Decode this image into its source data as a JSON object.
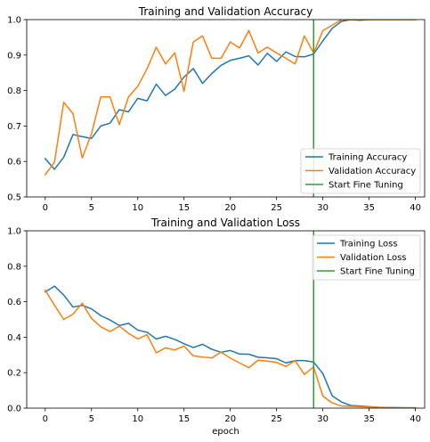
{
  "colors": {
    "training": "#1f77b4",
    "validation": "#ff7f0e",
    "fine_tuning": "#2ca02c"
  },
  "chart_data": [
    {
      "type": "line",
      "title": "Training and Validation Accuracy",
      "xlabel": "",
      "ylabel": "",
      "xlim": [
        -2,
        41
      ],
      "ylim": [
        0.5,
        1.0
      ],
      "xticks": [
        0,
        5,
        10,
        15,
        20,
        25,
        30,
        35,
        40
      ],
      "yticks": [
        0.5,
        0.6,
        0.7,
        0.8,
        0.9,
        1.0
      ],
      "ytick_labels": [
        "0.5",
        "0.6",
        "0.7",
        "0.8",
        "0.9",
        "1.0"
      ],
      "legend_position": "lower-right",
      "grid": false,
      "series": [
        {
          "name": "Training Accuracy",
          "color_key": "training",
          "x": [
            0,
            1,
            2,
            3,
            4,
            5,
            6,
            7,
            8,
            9,
            10,
            11,
            12,
            13,
            14,
            15,
            16,
            17,
            18,
            19,
            20,
            21,
            22,
            23,
            24,
            25,
            26,
            27,
            28,
            29,
            30,
            31,
            32,
            33,
            34,
            35,
            36,
            37,
            38,
            39,
            40
          ],
          "y": [
            0.608,
            0.578,
            0.612,
            0.676,
            0.67,
            0.665,
            0.7,
            0.708,
            0.746,
            0.74,
            0.778,
            0.771,
            0.818,
            0.786,
            0.804,
            0.838,
            0.862,
            0.82,
            0.848,
            0.871,
            0.885,
            0.891,
            0.898,
            0.872,
            0.905,
            0.882,
            0.909,
            0.896,
            0.895,
            0.903,
            0.94,
            0.975,
            0.995,
            1.0,
            0.998,
            1.0,
            1.0,
            1.0,
            1.0,
            1.0,
            1.0
          ]
        },
        {
          "name": "Validation Accuracy",
          "color_key": "validation",
          "x": [
            0,
            1,
            2,
            3,
            4,
            5,
            6,
            7,
            8,
            9,
            10,
            11,
            12,
            13,
            14,
            15,
            16,
            17,
            18,
            19,
            20,
            21,
            22,
            23,
            24,
            25,
            26,
            27,
            28,
            29,
            30,
            31,
            32,
            33,
            34,
            35,
            36,
            37,
            38,
            39,
            40
          ],
          "y": [
            0.563,
            0.598,
            0.767,
            0.735,
            0.61,
            0.678,
            0.782,
            0.782,
            0.704,
            0.782,
            0.812,
            0.861,
            0.922,
            0.875,
            0.906,
            0.798,
            0.937,
            0.954,
            0.891,
            0.891,
            0.937,
            0.92,
            0.969,
            0.906,
            0.922,
            0.906,
            0.891,
            0.875,
            0.954,
            0.906,
            0.969,
            0.984,
            1.0,
            1.0,
            1.0,
            1.0,
            1.0,
            1.0,
            1.0,
            1.0,
            1.0
          ]
        },
        {
          "name": "Start Fine Tuning",
          "color_key": "fine_tuning",
          "x": [
            29,
            29
          ],
          "y": [
            0.5,
            1.0
          ]
        }
      ]
    },
    {
      "type": "line",
      "title": "Training and Validation Loss",
      "xlabel": "epoch",
      "ylabel": "",
      "xlim": [
        -2,
        41
      ],
      "ylim": [
        0.0,
        1.0
      ],
      "xticks": [
        0,
        5,
        10,
        15,
        20,
        25,
        30,
        35,
        40
      ],
      "yticks": [
        0.0,
        0.2,
        0.4,
        0.6,
        0.8,
        1.0
      ],
      "ytick_labels": [
        "0.0",
        "0.2",
        "0.4",
        "0.6",
        "0.8",
        "1.0"
      ],
      "legend_position": "upper-right",
      "grid": false,
      "series": [
        {
          "name": "Training Loss",
          "color_key": "training",
          "x": [
            0,
            1,
            2,
            3,
            4,
            5,
            6,
            7,
            8,
            9,
            10,
            11,
            12,
            13,
            14,
            15,
            16,
            17,
            18,
            19,
            20,
            21,
            22,
            23,
            24,
            25,
            26,
            27,
            28,
            29,
            30,
            31,
            32,
            33,
            34,
            35,
            36,
            37,
            38,
            39,
            40
          ],
          "y": [
            0.655,
            0.688,
            0.638,
            0.57,
            0.58,
            0.56,
            0.522,
            0.497,
            0.466,
            0.478,
            0.44,
            0.428,
            0.39,
            0.405,
            0.388,
            0.363,
            0.342,
            0.36,
            0.332,
            0.315,
            0.325,
            0.305,
            0.304,
            0.287,
            0.284,
            0.279,
            0.255,
            0.268,
            0.268,
            0.26,
            0.195,
            0.07,
            0.035,
            0.015,
            0.012,
            0.008,
            0.005,
            0.004,
            0.003,
            0.002,
            0.002
          ]
        },
        {
          "name": "Validation Loss",
          "color_key": "validation",
          "x": [
            0,
            1,
            2,
            3,
            4,
            5,
            6,
            7,
            8,
            9,
            10,
            11,
            12,
            13,
            14,
            15,
            16,
            17,
            18,
            19,
            20,
            21,
            22,
            23,
            24,
            25,
            26,
            27,
            28,
            29,
            30,
            31,
            32,
            33,
            34,
            35,
            36,
            37,
            38,
            39,
            40
          ],
          "y": [
            0.665,
            0.581,
            0.5,
            0.53,
            0.592,
            0.506,
            0.459,
            0.432,
            0.462,
            0.422,
            0.39,
            0.414,
            0.312,
            0.34,
            0.328,
            0.35,
            0.295,
            0.288,
            0.283,
            0.316,
            0.282,
            0.255,
            0.228,
            0.27,
            0.265,
            0.258,
            0.235,
            0.268,
            0.19,
            0.232,
            0.068,
            0.03,
            0.012,
            0.01,
            0.008,
            0.006,
            0.004,
            0.003,
            0.002,
            0.002,
            0.002
          ]
        },
        {
          "name": "Start Fine Tuning",
          "color_key": "fine_tuning",
          "x": [
            29,
            29
          ],
          "y": [
            0.0,
            1.0
          ]
        }
      ]
    }
  ]
}
